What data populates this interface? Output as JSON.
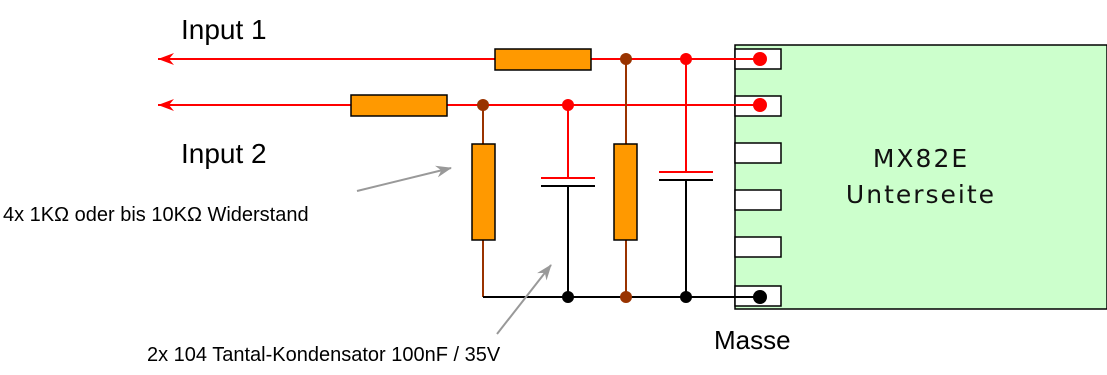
{
  "labels": {
    "input1": "Input 1",
    "input2": "Input 2",
    "resistor_note": "4x 1KΩ oder bis 10KΩ Widerstand",
    "capacitor_note": "2x 104 Tantal-Kondensator 100nF / 35V",
    "ground": "Masse"
  },
  "chip": {
    "name": "MX82E",
    "side": "Unterseite",
    "pin_count": 6,
    "color": "#ccffcc"
  },
  "colors": {
    "signal": "#ff0000",
    "resistor_wire": "#993300",
    "ground_wire": "#000000",
    "resistor_fill": "#ff9900",
    "callout_arrow": "#999999"
  }
}
